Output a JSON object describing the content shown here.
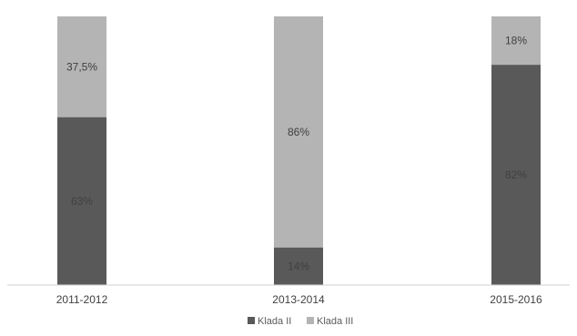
{
  "chart_data": {
    "type": "bar",
    "stacked": true,
    "percent": true,
    "categories": [
      "2011-2012",
      "2013-2014",
      "2015-2016"
    ],
    "series": [
      {
        "name": "Klada II",
        "values": [
          62.5,
          14,
          82
        ],
        "labels": [
          "63%",
          "14%",
          "82%"
        ],
        "color": "#595959",
        "label_color": "#404040"
      },
      {
        "name": "Klada III",
        "values": [
          37.5,
          86,
          18
        ],
        "labels": [
          "37,5%",
          "86%",
          "18%"
        ],
        "color": "#b4b4b4",
        "label_color": "#404040"
      }
    ],
    "ylim": [
      0,
      100
    ],
    "grid": false,
    "legend_position": "bottom"
  }
}
